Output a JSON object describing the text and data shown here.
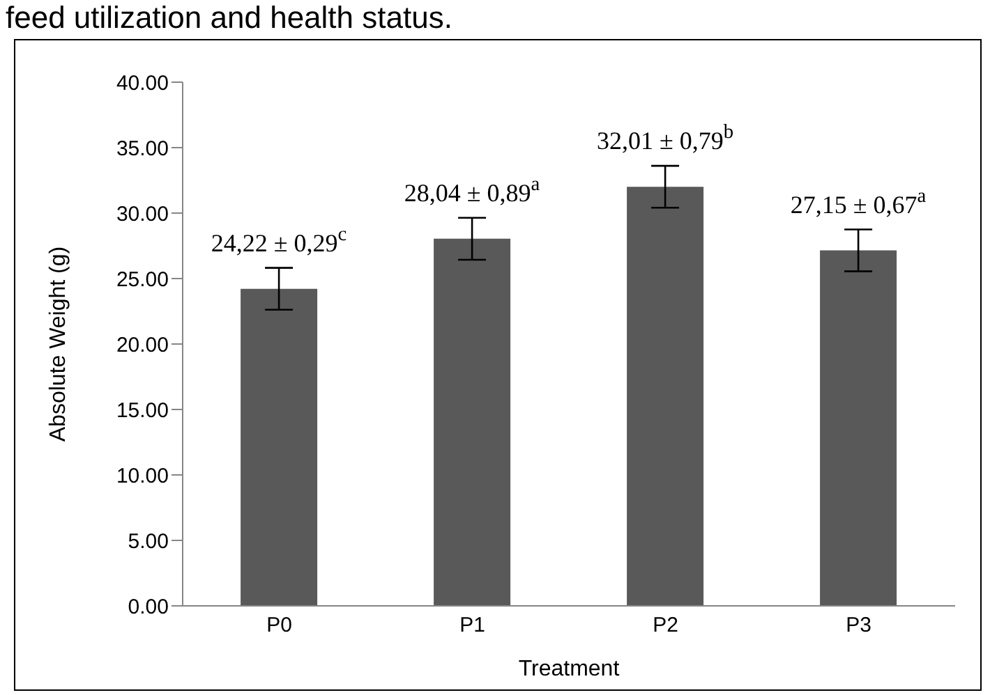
{
  "chart_data": {
    "type": "bar",
    "xlabel": "Treatment",
    "ylabel": "Absolute Weight (g)",
    "annotations": [
      "feed utilization and health status."
    ],
    "categories": [
      "P0",
      "P1",
      "P2",
      "P3"
    ],
    "values": [
      24.22,
      28.04,
      32.01,
      27.15
    ],
    "errors": [
      1.6,
      1.6,
      1.6,
      1.6
    ],
    "value_labels": [
      "24,22 ± 0,29$^{c}$",
      "28,04 ± 0,89$^{a}$",
      "32,01 ± 0,79$^{b}$",
      "27,15 ± 0,67$^{a}$"
    ],
    "color": "#595959",
    "ylim": [
      0,
      40
    ],
    "yticks": [
      {
        "value": 0,
        "label": "0.00"
      },
      {
        "value": 5,
        "label": "5.00"
      },
      {
        "value": 10,
        "label": "10.00"
      },
      {
        "value": 15,
        "label": "15.00"
      },
      {
        "value": 20,
        "label": "20.00"
      },
      {
        "value": 25,
        "label": "25.00"
      },
      {
        "value": 30,
        "label": "30.00"
      },
      {
        "value": 35,
        "label": "35.00"
      },
      {
        "value": 40,
        "label": "40.00"
      }
    ],
    "grid": false,
    "legend": false
  }
}
